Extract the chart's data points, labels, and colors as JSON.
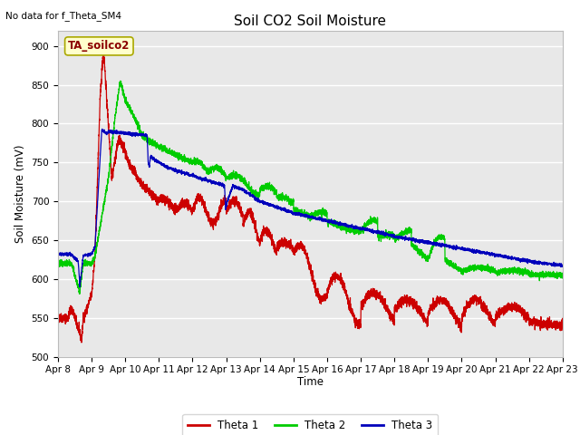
{
  "title": "Soil CO2 Soil Moisture",
  "note": "No data for f_Theta_SM4",
  "xlabel": "Time",
  "ylabel": "Soil Moisture (mV)",
  "ylim": [
    500,
    920
  ],
  "yticks": [
    500,
    550,
    600,
    650,
    700,
    750,
    800,
    850,
    900
  ],
  "xlim": [
    0,
    15
  ],
  "xtick_labels": [
    "Apr 8",
    "Apr 9",
    "Apr 10",
    "Apr 11",
    "Apr 12",
    "Apr 13",
    "Apr 14",
    "Apr 15",
    "Apr 16",
    "Apr 17",
    "Apr 18",
    "Apr 19",
    "Apr 20",
    "Apr 21",
    "Apr 22",
    "Apr 23"
  ],
  "annotation_text": "TA_soilco2",
  "line_colors": [
    "#cc0000",
    "#00cc00",
    "#0000bb"
  ],
  "line_labels": [
    "Theta 1",
    "Theta 2",
    "Theta 3"
  ],
  "plot_bg_color": "#e8e8e8",
  "grid_color": "white"
}
